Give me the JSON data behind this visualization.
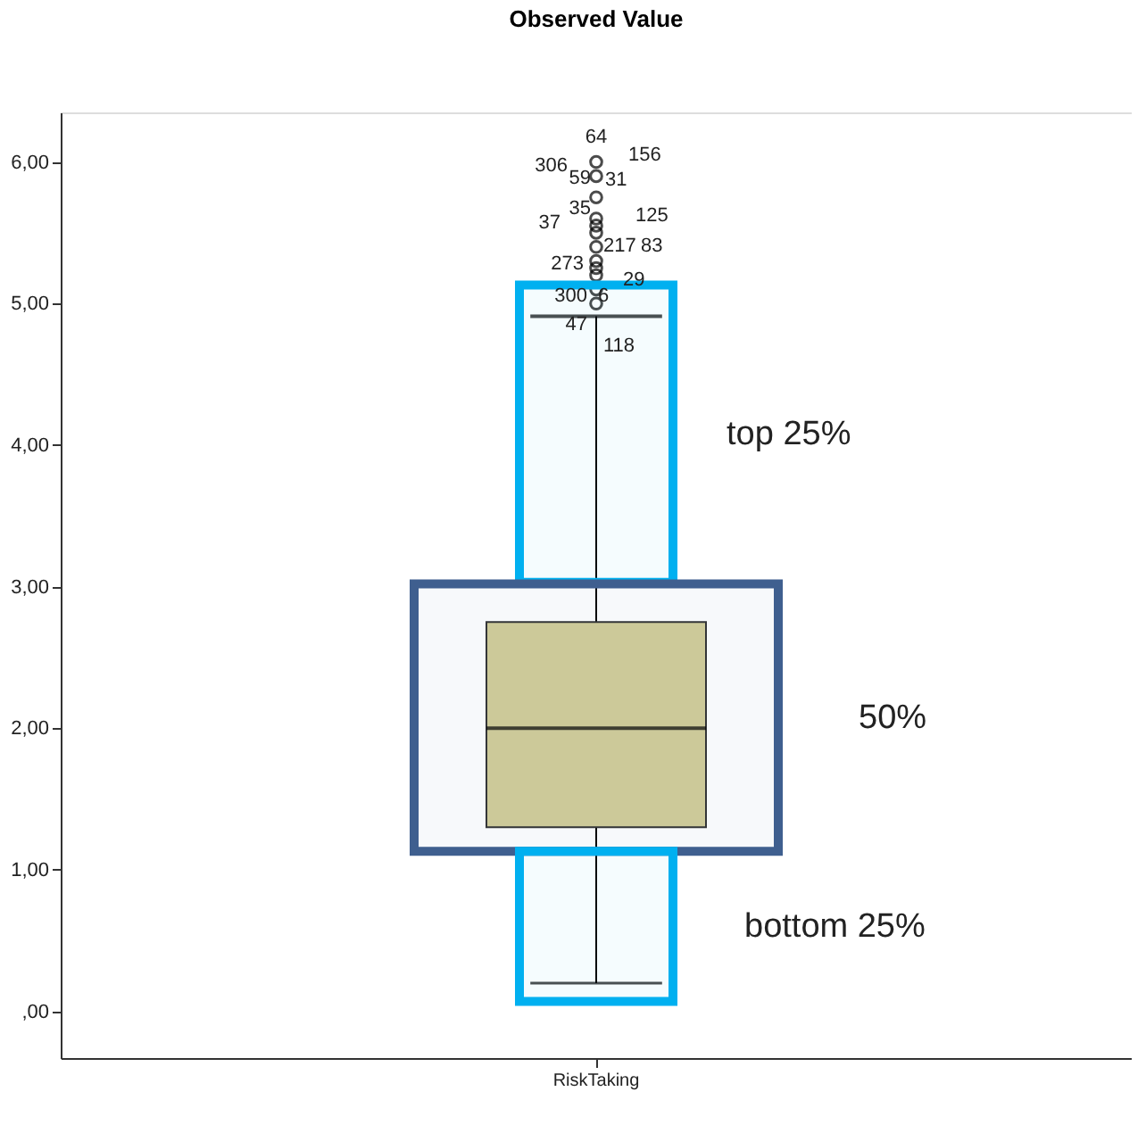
{
  "chart_data": {
    "type": "box",
    "title": "Observed Value",
    "categories": [
      "RiskTaking"
    ],
    "boxes": [
      {
        "low": 0.2,
        "q1": 1.3,
        "median": 2.0,
        "q3": 2.75,
        "high": 4.91,
        "outliers": [
          6.0,
          5.9,
          5.75,
          5.6,
          5.55,
          5.5,
          5.4,
          5.3,
          5.25,
          5.2,
          5.1,
          5.0
        ]
      }
    ],
    "colors": [
      "#d3ce9a"
    ],
    "ylim": [
      -0.33,
      6.35
    ],
    "yticks": [
      {
        "value": 0,
        "label": ",00"
      },
      {
        "value": 1,
        "label": "1,00"
      },
      {
        "value": 2,
        "label": "2,00"
      },
      {
        "value": 3,
        "label": "3,00"
      },
      {
        "value": 4,
        "label": "4,00"
      },
      {
        "value": 5,
        "label": "5,00"
      },
      {
        "value": 6,
        "label": "6,00"
      }
    ],
    "grid": false,
    "bands": [
      {
        "axis": "y",
        "from": 3.03,
        "to": 5.13,
        "label": "top 25%",
        "color": "#00b0f0"
      },
      {
        "axis": "y",
        "from": 1.13,
        "to": 3.02,
        "label": "50%",
        "color": "#3f5f8f"
      },
      {
        "axis": "y",
        "from": 0.07,
        "to": 1.13,
        "label": "bottom 25%",
        "color": "#00b0f0"
      }
    ],
    "annotations": [
      "64",
      "156",
      "306",
      "59",
      "31",
      "35",
      "37",
      "125",
      "217",
      "83",
      "273",
      "29",
      "300",
      "6",
      "47",
      "118"
    ]
  }
}
